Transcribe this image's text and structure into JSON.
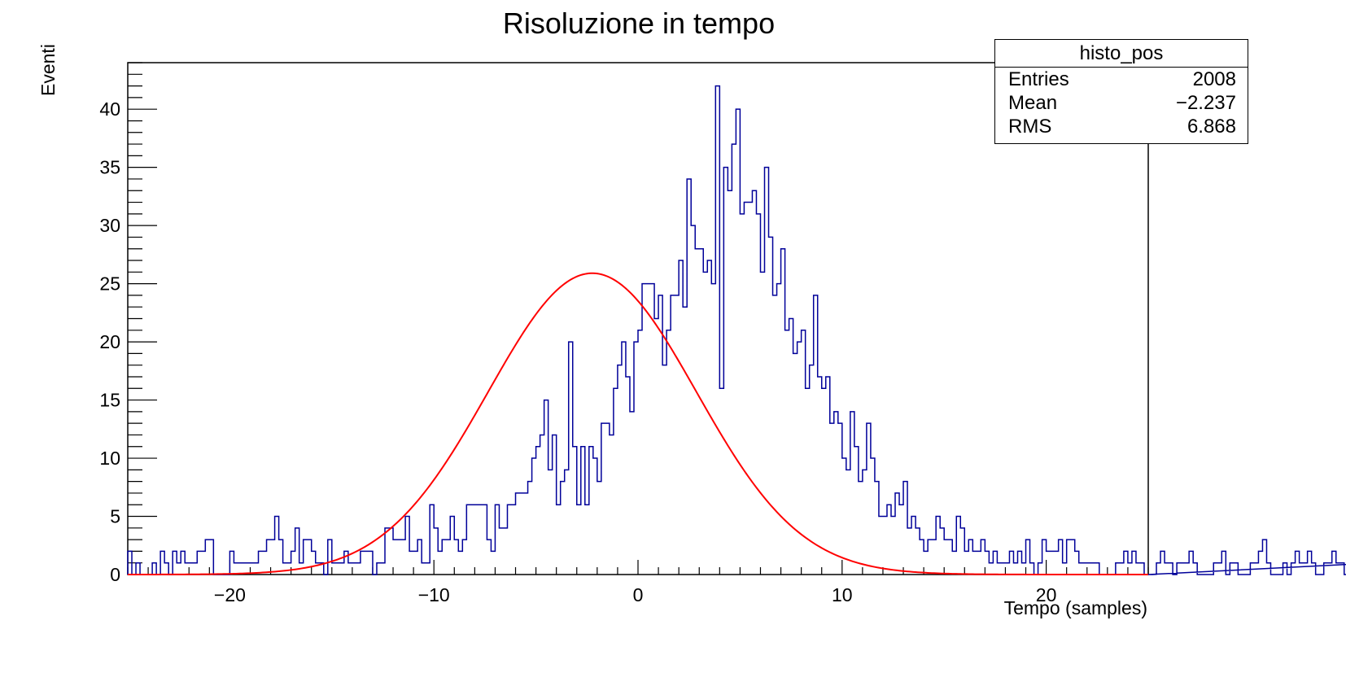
{
  "chart_data": {
    "type": "bar",
    "title": "Risoluzione in tempo",
    "xlabel": "Tempo (samples)",
    "ylabel": "Eventi",
    "xlim": [
      -25,
      25
    ],
    "ylim": [
      0,
      44
    ],
    "x_ticks": [
      -20,
      -10,
      0,
      10,
      20
    ],
    "x_tick_labels": [
      "−20",
      "−10",
      "0",
      "10",
      "20"
    ],
    "y_ticks": [
      0,
      5,
      10,
      15,
      20,
      25,
      30,
      35,
      40
    ],
    "y_tick_labels": [
      "0",
      "5",
      "10",
      "15",
      "20",
      "25",
      "30",
      "35",
      "40"
    ],
    "grid": false,
    "bin_width": 0.2,
    "histogram_color": "#000099",
    "fit_color": "#ff0000",
    "series": [
      {
        "values": [
          2,
          0,
          1,
          0,
          0,
          0,
          1,
          0,
          2,
          1,
          0,
          2,
          1,
          2,
          1,
          1,
          1,
          2,
          2,
          3,
          3,
          0,
          0,
          0,
          0,
          2,
          1,
          1,
          1,
          1,
          1,
          1,
          2,
          2,
          3,
          3,
          5,
          3,
          1,
          1,
          2,
          4,
          1,
          3,
          3,
          2,
          1,
          1,
          0,
          3,
          1,
          1,
          1,
          2,
          1,
          1,
          1,
          2,
          2,
          2,
          0,
          1,
          1,
          4,
          4,
          3,
          3,
          3,
          5,
          2,
          2,
          3,
          1,
          1,
          6,
          4,
          2,
          3,
          3,
          5,
          3,
          2,
          3,
          6,
          6,
          6,
          6,
          6,
          3,
          2,
          6,
          4,
          4,
          6,
          6,
          7,
          7,
          7,
          8,
          10,
          11,
          12,
          15,
          9,
          12,
          6,
          8,
          9,
          20,
          11,
          6,
          11,
          6,
          11,
          10,
          8,
          13,
          13,
          12,
          16,
          18,
          20,
          17,
          14,
          20,
          21,
          25,
          25,
          25,
          22,
          24,
          18,
          21,
          24,
          24,
          27,
          23,
          34,
          30,
          28,
          28,
          26,
          27,
          25,
          42,
          16,
          35,
          33,
          37,
          40,
          31,
          32,
          32,
          33,
          31,
          26,
          35,
          29,
          24,
          25,
          28,
          21,
          22,
          19,
          20,
          21,
          16,
          18,
          24,
          17,
          16,
          17,
          13,
          14,
          13,
          10,
          9,
          14,
          11,
          8,
          9,
          13,
          10,
          8,
          5,
          5,
          6,
          5,
          7,
          6,
          8,
          4,
          5,
          4,
          3,
          2,
          3,
          3,
          5,
          4,
          3,
          3,
          2,
          5,
          4,
          2,
          3,
          2,
          2,
          3,
          2,
          1,
          2,
          1,
          1,
          1,
          2,
          1,
          2,
          1,
          3,
          1,
          0,
          1,
          3,
          2,
          2,
          2,
          3,
          1,
          3,
          3,
          2,
          1,
          1,
          1,
          1,
          1,
          0,
          0,
          0,
          0,
          1,
          1,
          2,
          1,
          2,
          1,
          1,
          0,
          0,
          0,
          1,
          2,
          1,
          1,
          0,
          1,
          1,
          1,
          2,
          1,
          0,
          0,
          0,
          0,
          1,
          1,
          2,
          0,
          1,
          1,
          0,
          0,
          0,
          1,
          1,
          2,
          3,
          1,
          0,
          0,
          0,
          1,
          0,
          1,
          2,
          1,
          1,
          2,
          1,
          0,
          0,
          1,
          1,
          2,
          1,
          1,
          0,
          1,
          1,
          0,
          1,
          0,
          0,
          1
        ]
      },
      {
        "type": "line",
        "function": "gaussian",
        "constant": 25.9,
        "mean": -2.24,
        "sigma": 5.1
      }
    ],
    "stats_box": {
      "name": "histo_pos",
      "rows": [
        {
          "label": "Entries",
          "value": "2008"
        },
        {
          "label": "Mean",
          "value": "−2.237"
        },
        {
          "label": "RMS",
          "value": "6.868"
        }
      ]
    }
  }
}
